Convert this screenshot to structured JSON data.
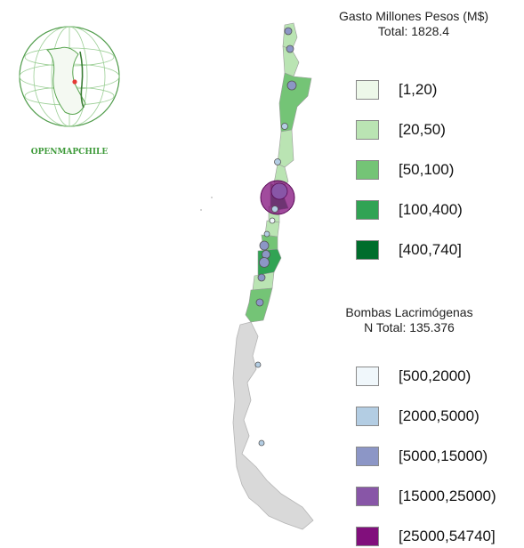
{
  "logo": {
    "text": "OPENMAPCHILE",
    "color": "#3e9a3a"
  },
  "legend_spending": {
    "title": "Gasto Millones Pesos (M$)",
    "total": "Total: 1828.4",
    "items": [
      {
        "label": "[1,20)",
        "color": "#edf8e9"
      },
      {
        "label": "[20,50)",
        "color": "#bae4b3"
      },
      {
        "label": "[50,100)",
        "color": "#74c476"
      },
      {
        "label": "[100,400)",
        "color": "#31a354"
      },
      {
        "label": "[400,740]",
        "color": "#006d2c"
      }
    ]
  },
  "legend_bombs": {
    "title": "Bombas Lacrimógenas",
    "total": "N Total: 135.376",
    "items": [
      {
        "label": "[500,2000)",
        "color": "#f0f7fb"
      },
      {
        "label": "[2000,5000)",
        "color": "#b3cde3"
      },
      {
        "label": "[5000,15000)",
        "color": "#8c96c6"
      },
      {
        "label": "[15000,25000)",
        "color": "#8856a7"
      },
      {
        "label": "[25000,54740]",
        "color": "#810f7c"
      }
    ]
  },
  "map_colors": {
    "no_data": "#d9d9d9",
    "outline": "#9a9a9a"
  }
}
